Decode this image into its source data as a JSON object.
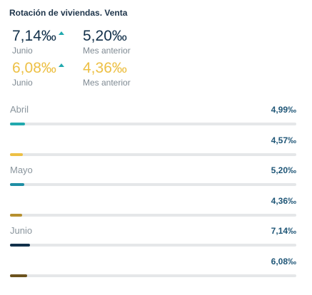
{
  "title": "Rotación de viviendas. Venta",
  "kpis": {
    "navy_current": {
      "value": "7,14‰",
      "label": "Junio"
    },
    "navy_previous": {
      "value": "5,20‰",
      "label": "Mes anterior"
    },
    "gold_current": {
      "value": "6,08‰",
      "label": "Junio"
    },
    "gold_previous": {
      "value": "4,36‰",
      "label": "Mes anterior"
    }
  },
  "rows": [
    {
      "label": "Abril",
      "value": "4,99‰",
      "fill": 0.052,
      "color": "#21a9ae"
    },
    {
      "label": "",
      "value": "4,57‰",
      "fill": 0.045,
      "color": "#edc045"
    },
    {
      "label": "Mayo",
      "value": "5,20‰",
      "fill": 0.05,
      "color": "#1e8ea4"
    },
    {
      "label": "",
      "value": "4,36‰",
      "fill": 0.042,
      "color": "#b69030"
    },
    {
      "label": "Junio",
      "value": "7,14‰",
      "fill": 0.07,
      "color": "#11304a"
    },
    {
      "label": "",
      "value": "6,08‰",
      "fill": 0.06,
      "color": "#6b521e"
    }
  ],
  "icons": {
    "trend_up": "arrow-up-icon"
  }
}
